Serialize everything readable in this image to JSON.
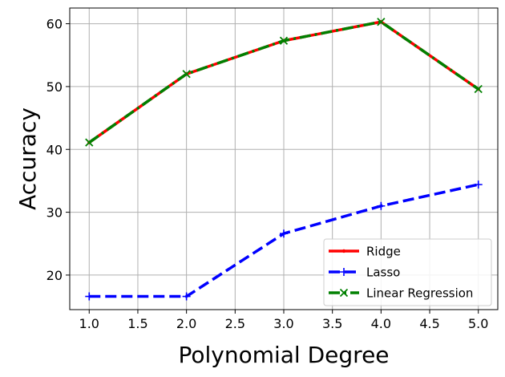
{
  "chart_data": {
    "type": "line",
    "title": "",
    "xlabel": "Polynomial Degree",
    "ylabel": "Accuracy",
    "x": [
      1.0,
      2.0,
      3.0,
      4.0,
      5.0
    ],
    "xlim": [
      0.8,
      5.2
    ],
    "ylim": [
      14.5,
      62.5
    ],
    "xticks": [
      1.0,
      1.5,
      2.0,
      2.5,
      3.0,
      3.5,
      4.0,
      4.5,
      5.0
    ],
    "xtick_labels": [
      "1.0",
      "1.5",
      "2.0",
      "2.5",
      "3.0",
      "3.5",
      "4.0",
      "4.5",
      "5.0"
    ],
    "yticks": [
      20,
      30,
      40,
      50,
      60
    ],
    "ytick_labels": [
      "20",
      "30",
      "40",
      "50",
      "60"
    ],
    "grid": true,
    "legend_position": "lower-right",
    "series": [
      {
        "name": "Ridge",
        "values": [
          41.1,
          52.0,
          57.3,
          60.3,
          49.6
        ],
        "color": "#ff0000",
        "style": "solid",
        "marker": "point"
      },
      {
        "name": "Lasso",
        "values": [
          16.6,
          16.6,
          26.6,
          31.0,
          34.4
        ],
        "color": "#0000ff",
        "style": "dashed",
        "marker": "plus"
      },
      {
        "name": "Linear Regression",
        "values": [
          41.1,
          52.0,
          57.3,
          60.3,
          49.6
        ],
        "color": "#008000",
        "style": "dashdot",
        "marker": "x"
      }
    ]
  }
}
